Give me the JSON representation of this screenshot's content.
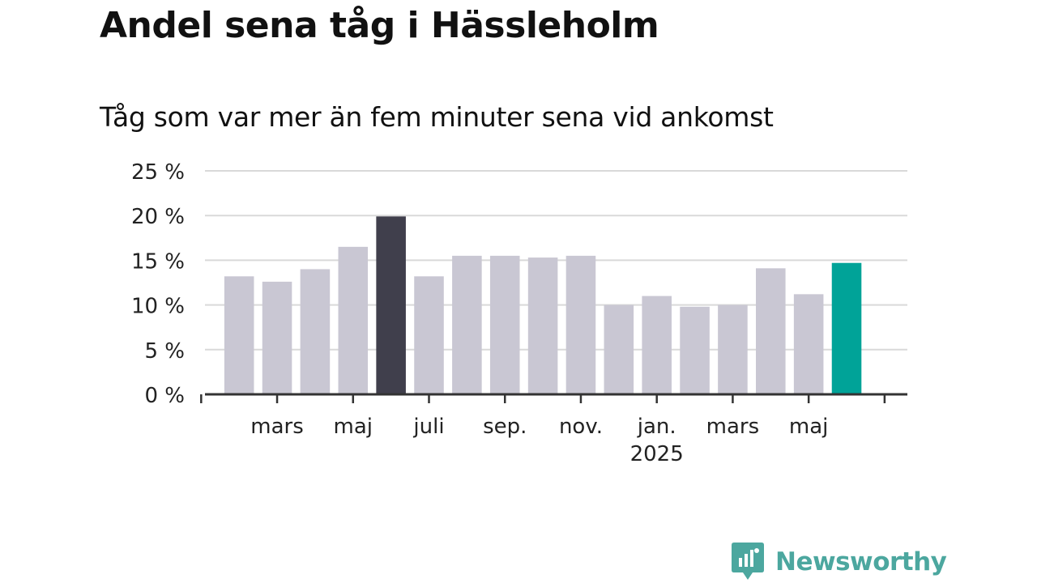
{
  "colors": {
    "bar_default": "#c9c7d3",
    "bar_max": "#403f4c",
    "bar_latest": "#00a398",
    "grid": "#d9d9d9",
    "axis": "#333333",
    "brand": "#4ca79f"
  },
  "chart_data": {
    "type": "bar",
    "title": "Andel sena tåg i Hässleholm",
    "subtitle": "Tåg som var mer än fem minuter sena vid ankomst",
    "xlabel": "",
    "ylabel": "",
    "ylim": [
      0,
      25
    ],
    "y_ticks": [
      0,
      5,
      10,
      15,
      20,
      25
    ],
    "y_tick_labels": [
      "0 %",
      "5 %",
      "10 %",
      "15 %",
      "20 %",
      "25 %"
    ],
    "x_tick_labels": [
      {
        "label": "mars",
        "sub": ""
      },
      {
        "label": "maj",
        "sub": ""
      },
      {
        "label": "juli",
        "sub": ""
      },
      {
        "label": "sep.",
        "sub": ""
      },
      {
        "label": "nov.",
        "sub": ""
      },
      {
        "label": "jan.",
        "sub": "2025"
      },
      {
        "label": "mars",
        "sub": ""
      },
      {
        "label": "maj",
        "sub": ""
      }
    ],
    "categories": [
      "2024-02",
      "2024-03",
      "2024-04",
      "2024-05",
      "2024-06",
      "2024-07",
      "2024-08",
      "2024-09",
      "2024-10",
      "2024-11",
      "2024-12",
      "2025-01",
      "2025-02",
      "2025-03",
      "2025-04",
      "2025-05",
      "2025-06"
    ],
    "values": [
      13.2,
      12.6,
      14.0,
      16.5,
      19.9,
      13.2,
      15.5,
      15.5,
      15.3,
      15.5,
      10.0,
      11.0,
      9.8,
      10.0,
      14.1,
      11.2,
      14.7
    ],
    "highlight": {
      "max_index": 4,
      "latest_index": 16
    },
    "grid": true,
    "legend": "none"
  },
  "brand": {
    "name": "Newsworthy",
    "icon": "newsworthy-logo-icon"
  }
}
